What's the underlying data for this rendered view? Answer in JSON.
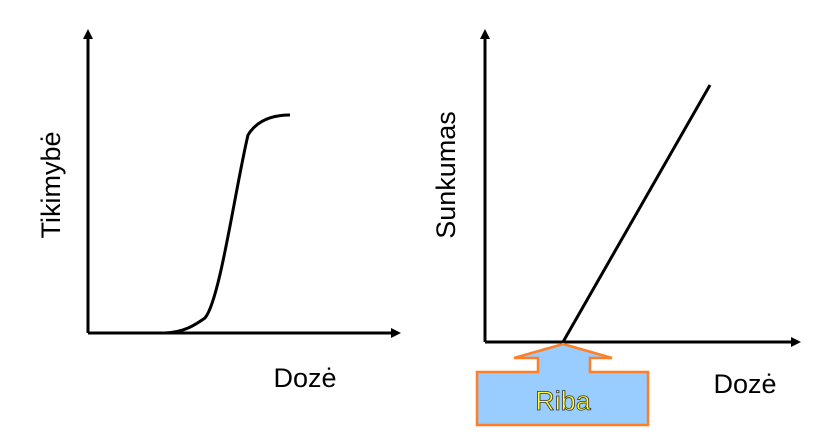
{
  "left": {
    "y_label": "Tikimybė",
    "x_label": "Dozė"
  },
  "right": {
    "y_label": "Sunkumas",
    "x_label": "Dozė",
    "threshold_label": "Riba"
  }
}
